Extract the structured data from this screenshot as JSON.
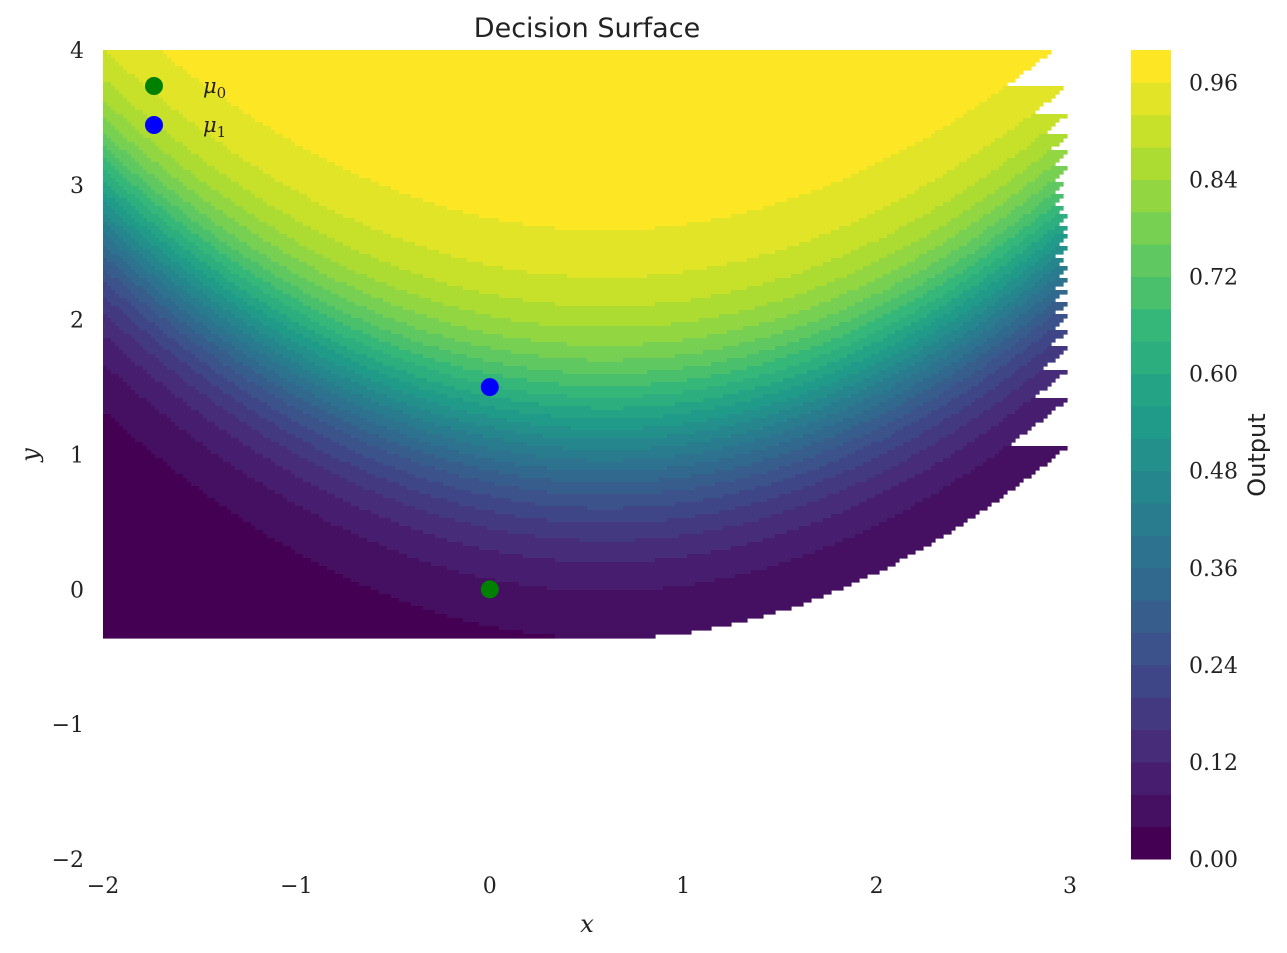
{
  "chart_data": {
    "type": "heatmap",
    "title": "Decision Surface",
    "xlabel": "x",
    "ylabel": "y",
    "xlim": [
      -2,
      3
    ],
    "ylim": [
      -2,
      4
    ],
    "x_ticks": [
      "−2",
      "−1",
      "0",
      "1",
      "2",
      "3"
    ],
    "y_ticks": [
      "−2",
      "−1",
      "0",
      "1",
      "2",
      "3",
      "4"
    ],
    "colorbar": {
      "label": "Output",
      "range": [
        0,
        1
      ],
      "levels": 25,
      "ticks": [
        "0.00",
        "0.12",
        "0.24",
        "0.36",
        "0.48",
        "0.60",
        "0.72",
        "0.84",
        "0.96"
      ],
      "colormap": "viridis"
    },
    "points": [
      {
        "name": "μ0",
        "x": 0,
        "y": 0,
        "color": "#008000"
      },
      {
        "name": "μ1",
        "x": 0,
        "y": 1.5,
        "color": "#0000ff"
      }
    ],
    "legend": {
      "position": "top-left",
      "entries": [
        {
          "base": "μ",
          "sub": "0",
          "color": "#008000"
        },
        {
          "base": "μ",
          "sub": "1",
          "color": "#0000ff"
        }
      ]
    },
    "grid": false
  }
}
